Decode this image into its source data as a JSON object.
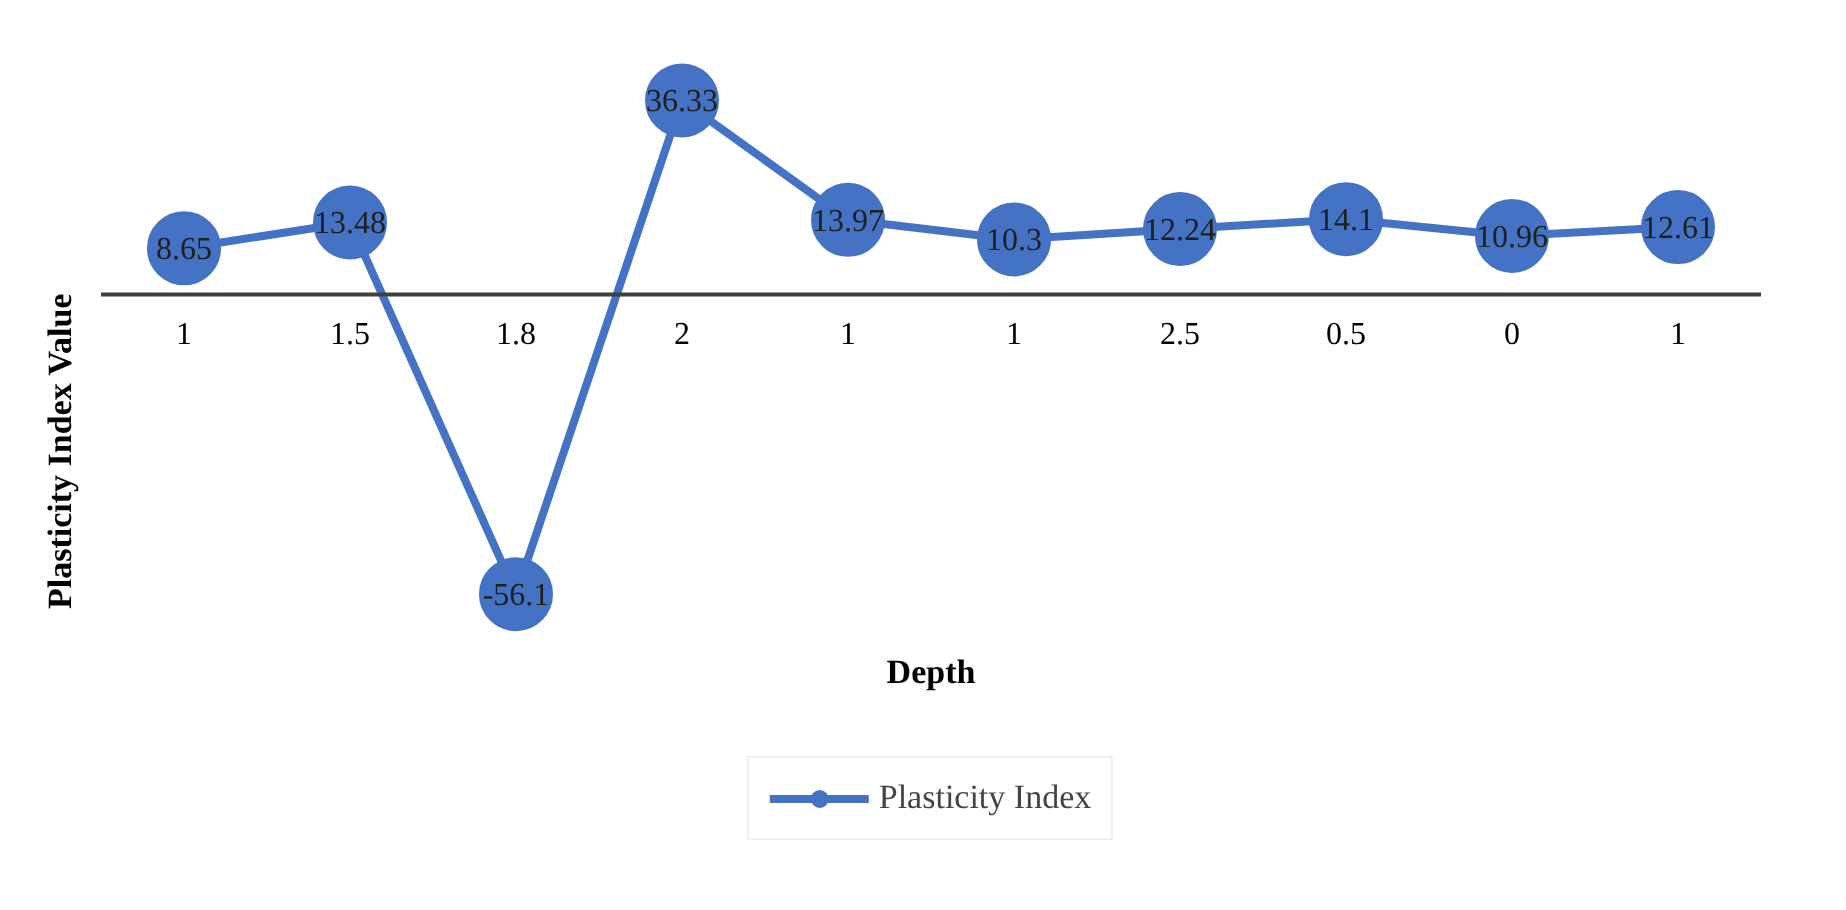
{
  "chart_data": {
    "type": "line",
    "xlabel": "Depth",
    "ylabel": "Plasticity Index Value",
    "categories": [
      "1",
      "1.5",
      "1.8",
      "2",
      "1",
      "1",
      "2.5",
      "0.5",
      "0",
      "1"
    ],
    "series": [
      {
        "name": "Plasticity Index",
        "color": "#4472c4",
        "values": [
          8.65,
          13.48,
          -56.1,
          36.33,
          13.97,
          10.3,
          12.24,
          14.1,
          10.96,
          12.61
        ]
      }
    ],
    "relative": false,
    "data_labels": true,
    "marker": "circle",
    "legend": "bottom",
    "grid": false,
    "line_style": "solid"
  }
}
